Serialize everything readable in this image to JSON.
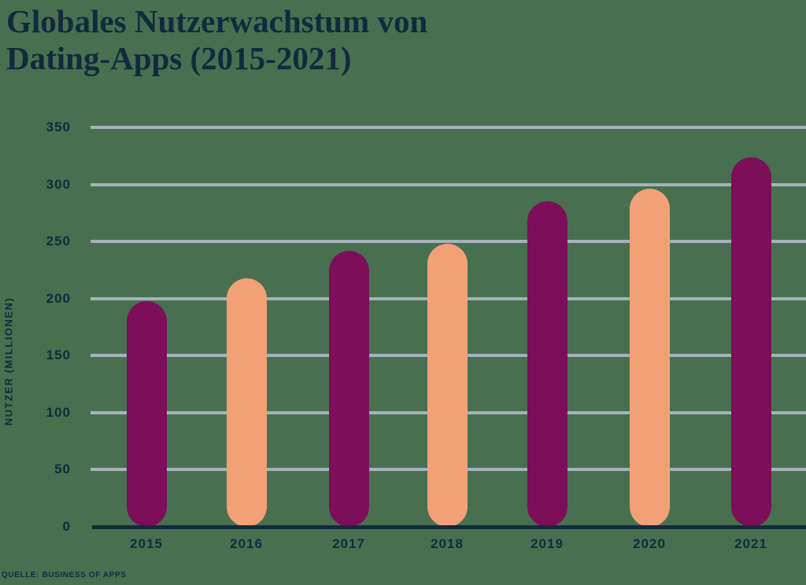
{
  "page": {
    "background_color": "#487050",
    "title_lines": [
      "Globales Nutzerwachstum von",
      "Dating-Apps (2015-2021)"
    ],
    "source": "QUELLE: BUSINESS OF APPS"
  },
  "chart_data": {
    "type": "bar",
    "title": "Globales Nutzerwachstum von Dating-Apps (2015-2021)",
    "categories": [
      "2015",
      "2016",
      "2017",
      "2018",
      "2019",
      "2020",
      "2021"
    ],
    "values": [
      198,
      218,
      242,
      248,
      285,
      296,
      324
    ],
    "xlabel": "",
    "ylabel": "NUTZER (MILLIONEN)",
    "ylim": [
      0,
      350
    ],
    "yticks": [
      0,
      50,
      100,
      150,
      200,
      250,
      300,
      350
    ],
    "grid": true,
    "legend_position": "none",
    "bar_colors": [
      "#7C0E5A",
      "#F2A176",
      "#7C0E5A",
      "#F2A176",
      "#7C0E5A",
      "#F2A176",
      "#7C0E5A"
    ],
    "colors": {
      "bar_dark": "#7C0E5A",
      "bar_light": "#F2A176",
      "text": "#13293D",
      "gridline": "#A6B2BB",
      "baseline": "#13293D",
      "background": "#487050"
    },
    "source": "QUELLE: BUSINESS OF APPS"
  }
}
